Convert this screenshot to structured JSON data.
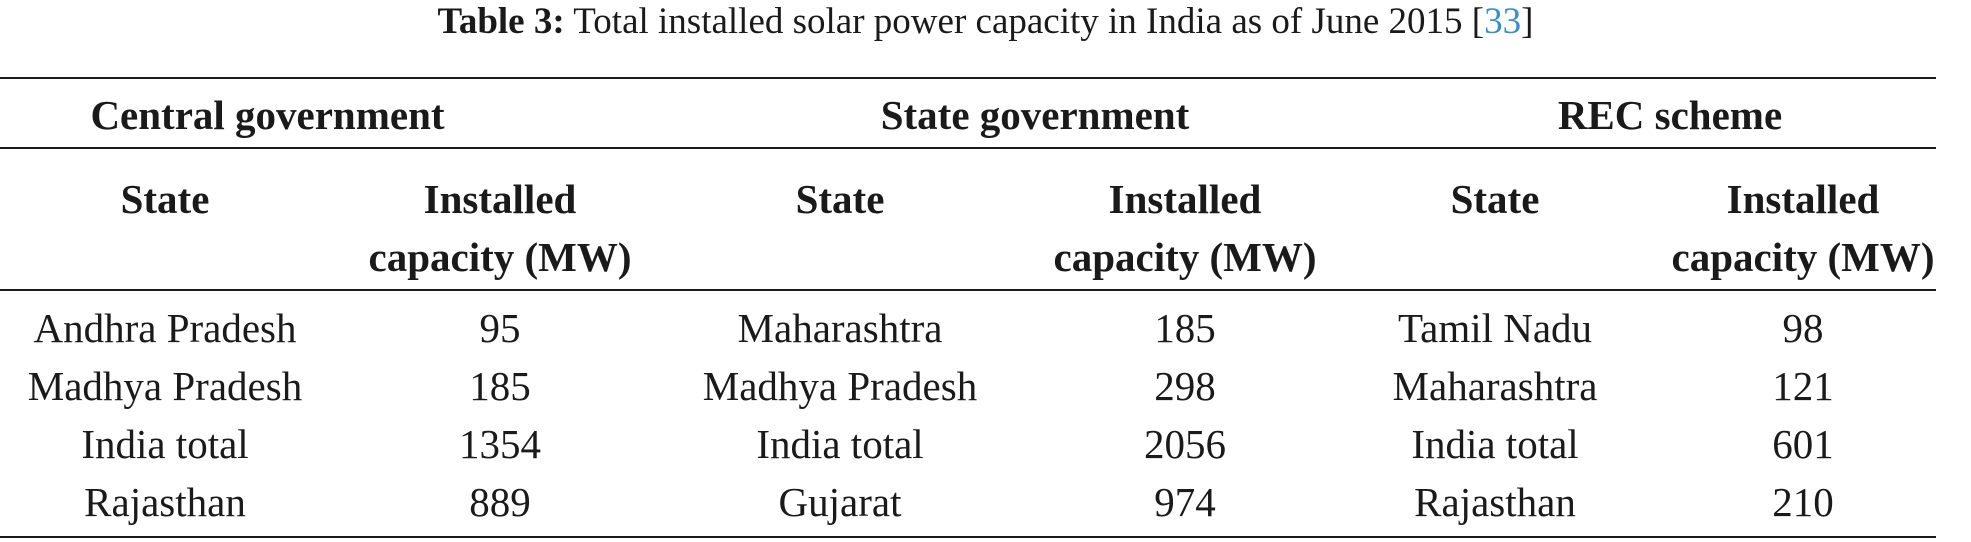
{
  "caption": {
    "label": "Table 3:",
    "text": " Total installed solar power capacity in India as of June 2015 [",
    "citation": "33",
    "close": "]"
  },
  "groups": [
    {
      "title": "Central government",
      "col_state": "State",
      "col_capacity_line1": "Installed",
      "col_capacity_line2": "capacity (MW)",
      "rows": [
        {
          "state": "Andhra Pradesh",
          "capacity": "95"
        },
        {
          "state": "Madhya Pradesh",
          "capacity": "185"
        },
        {
          "state": "India total",
          "capacity": "1354"
        },
        {
          "state": "Rajasthan",
          "capacity": "889"
        }
      ]
    },
    {
      "title": "State government",
      "col_state": "State",
      "col_capacity_line1": "Installed",
      "col_capacity_line2": "capacity (MW)",
      "rows": [
        {
          "state": "Maharashtra",
          "capacity": "185"
        },
        {
          "state": "Madhya Pradesh",
          "capacity": "298"
        },
        {
          "state": "India total",
          "capacity": "2056"
        },
        {
          "state": "Gujarat",
          "capacity": "974"
        }
      ]
    },
    {
      "title": "REC scheme",
      "col_state": "State",
      "col_capacity_line1": "Installed",
      "col_capacity_line2": "capacity (MW)",
      "rows": [
        {
          "state": "Tamil Nadu",
          "capacity": "98"
        },
        {
          "state": "Maharashtra",
          "capacity": "121"
        },
        {
          "state": "India total",
          "capacity": "601"
        },
        {
          "state": "Rajasthan",
          "capacity": "210"
        }
      ]
    }
  ]
}
